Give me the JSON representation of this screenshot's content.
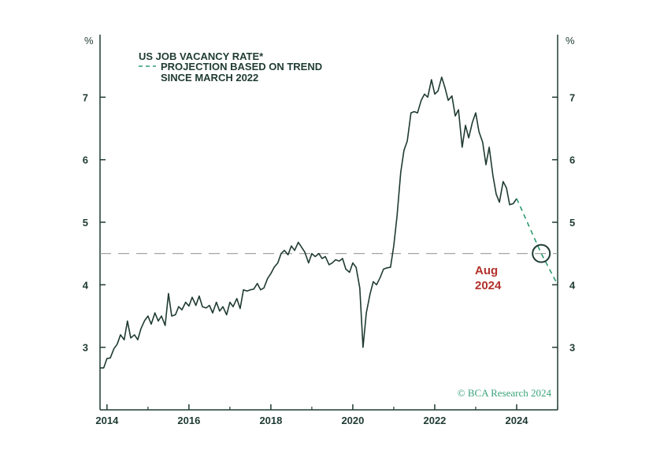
{
  "chart_data": {
    "type": "line",
    "legend": [
      {
        "label": "US JOB VACANCY RATE*",
        "style": "solid"
      },
      {
        "label": "PROJECTION BASED ON TREND",
        "label_line2": "SINCE MARCH 2022",
        "style": "dashed"
      }
    ],
    "left_unit": "%",
    "right_unit": "%",
    "y_ticks": [
      "3",
      "4",
      "5",
      "6",
      "7"
    ],
    "x_ticks": [
      "2014",
      "2016",
      "2018",
      "2020",
      "2022",
      "2024"
    ],
    "xlim": [
      2013.83,
      2025.0
    ],
    "ylim": [
      2.0,
      8.0
    ],
    "reference_line": 4.5,
    "annotation": {
      "line1": "Aug",
      "line2": "2024",
      "x": 2024.6,
      "y": 4.5
    },
    "source": "© BCA Research 2024",
    "colors": {
      "line": "#1f3b33",
      "projection": "#2e9b6e",
      "reference": "#999999",
      "annotation": "#b3302b"
    },
    "series": [
      {
        "style": "solid",
        "points": [
          [
            2013.84,
            2.67
          ],
          [
            2013.92,
            2.67
          ],
          [
            2014.0,
            2.82
          ],
          [
            2014.08,
            2.83
          ],
          [
            2014.17,
            2.98
          ],
          [
            2014.25,
            3.05
          ],
          [
            2014.33,
            3.2
          ],
          [
            2014.42,
            3.12
          ],
          [
            2014.5,
            3.42
          ],
          [
            2014.58,
            3.15
          ],
          [
            2014.67,
            3.2
          ],
          [
            2014.75,
            3.12
          ],
          [
            2014.83,
            3.3
          ],
          [
            2014.92,
            3.43
          ],
          [
            2015.0,
            3.5
          ],
          [
            2015.08,
            3.37
          ],
          [
            2015.17,
            3.55
          ],
          [
            2015.25,
            3.42
          ],
          [
            2015.33,
            3.5
          ],
          [
            2015.42,
            3.35
          ],
          [
            2015.5,
            3.86
          ],
          [
            2015.58,
            3.5
          ],
          [
            2015.67,
            3.52
          ],
          [
            2015.75,
            3.65
          ],
          [
            2015.83,
            3.6
          ],
          [
            2015.92,
            3.72
          ],
          [
            2016.0,
            3.66
          ],
          [
            2016.08,
            3.8
          ],
          [
            2016.17,
            3.67
          ],
          [
            2016.25,
            3.82
          ],
          [
            2016.33,
            3.65
          ],
          [
            2016.42,
            3.63
          ],
          [
            2016.5,
            3.67
          ],
          [
            2016.58,
            3.55
          ],
          [
            2016.67,
            3.72
          ],
          [
            2016.75,
            3.58
          ],
          [
            2016.83,
            3.65
          ],
          [
            2016.92,
            3.52
          ],
          [
            2017.0,
            3.72
          ],
          [
            2017.08,
            3.65
          ],
          [
            2017.17,
            3.78
          ],
          [
            2017.25,
            3.62
          ],
          [
            2017.33,
            3.92
          ],
          [
            2017.42,
            3.9
          ],
          [
            2017.5,
            3.92
          ],
          [
            2017.58,
            3.93
          ],
          [
            2017.67,
            4.02
          ],
          [
            2017.75,
            3.92
          ],
          [
            2017.83,
            3.95
          ],
          [
            2017.92,
            4.1
          ],
          [
            2018.0,
            4.18
          ],
          [
            2018.08,
            4.28
          ],
          [
            2018.17,
            4.35
          ],
          [
            2018.25,
            4.5
          ],
          [
            2018.33,
            4.55
          ],
          [
            2018.42,
            4.48
          ],
          [
            2018.5,
            4.62
          ],
          [
            2018.58,
            4.55
          ],
          [
            2018.67,
            4.68
          ],
          [
            2018.75,
            4.6
          ],
          [
            2018.83,
            4.52
          ],
          [
            2018.92,
            4.35
          ],
          [
            2019.0,
            4.5
          ],
          [
            2019.08,
            4.45
          ],
          [
            2019.17,
            4.5
          ],
          [
            2019.25,
            4.42
          ],
          [
            2019.33,
            4.45
          ],
          [
            2019.42,
            4.32
          ],
          [
            2019.5,
            4.35
          ],
          [
            2019.58,
            4.4
          ],
          [
            2019.67,
            4.38
          ],
          [
            2019.75,
            4.42
          ],
          [
            2019.83,
            4.25
          ],
          [
            2019.92,
            4.2
          ],
          [
            2020.0,
            4.35
          ],
          [
            2020.08,
            4.28
          ],
          [
            2020.17,
            3.95
          ],
          [
            2020.25,
            3.0
          ],
          [
            2020.33,
            3.55
          ],
          [
            2020.42,
            3.85
          ],
          [
            2020.5,
            4.05
          ],
          [
            2020.58,
            4.0
          ],
          [
            2020.67,
            4.12
          ],
          [
            2020.75,
            4.25
          ],
          [
            2020.83,
            4.27
          ],
          [
            2020.92,
            4.28
          ],
          [
            2021.0,
            4.62
          ],
          [
            2021.08,
            5.1
          ],
          [
            2021.17,
            5.8
          ],
          [
            2021.25,
            6.15
          ],
          [
            2021.33,
            6.3
          ],
          [
            2021.42,
            6.75
          ],
          [
            2021.5,
            6.77
          ],
          [
            2021.58,
            6.75
          ],
          [
            2021.67,
            6.95
          ],
          [
            2021.75,
            7.05
          ],
          [
            2021.83,
            7.0
          ],
          [
            2021.92,
            7.28
          ],
          [
            2022.0,
            7.05
          ],
          [
            2022.08,
            7.1
          ],
          [
            2022.17,
            7.32
          ],
          [
            2022.25,
            7.15
          ],
          [
            2022.33,
            6.95
          ],
          [
            2022.42,
            7.02
          ],
          [
            2022.5,
            6.7
          ],
          [
            2022.58,
            6.8
          ],
          [
            2022.67,
            6.2
          ],
          [
            2022.75,
            6.55
          ],
          [
            2022.83,
            6.35
          ],
          [
            2022.92,
            6.6
          ],
          [
            2023.0,
            6.75
          ],
          [
            2023.08,
            6.45
          ],
          [
            2023.17,
            6.28
          ],
          [
            2023.25,
            5.92
          ],
          [
            2023.33,
            6.2
          ],
          [
            2023.42,
            5.75
          ],
          [
            2023.5,
            5.45
          ],
          [
            2023.58,
            5.32
          ],
          [
            2023.67,
            5.65
          ],
          [
            2023.75,
            5.55
          ],
          [
            2023.83,
            5.28
          ],
          [
            2023.92,
            5.3
          ],
          [
            2024.0,
            5.38
          ]
        ]
      },
      {
        "style": "dashed",
        "points": [
          [
            2024.0,
            5.38
          ],
          [
            2024.6,
            4.5
          ],
          [
            2025.0,
            4.0
          ]
        ]
      }
    ]
  }
}
